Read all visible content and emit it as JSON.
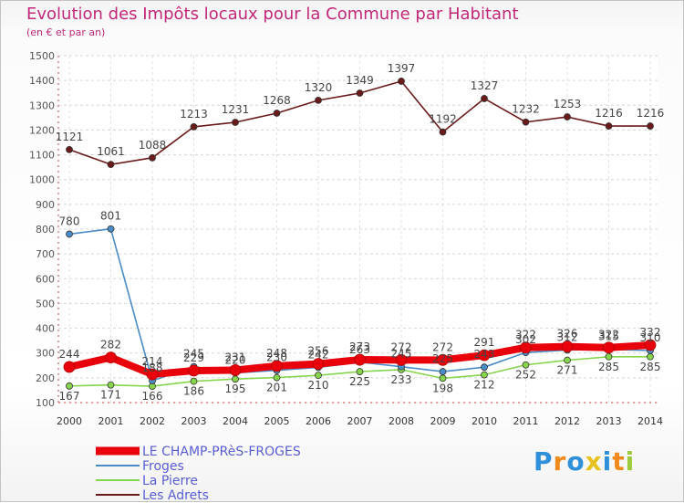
{
  "title": "Evolution des Impôts locaux pour la Commune par Habitant",
  "subtitle": "(en € et par an)",
  "chart_data": {
    "type": "line",
    "x": [
      "2000",
      "2001",
      "2002",
      "2003",
      "2004",
      "2005",
      "2006",
      "2007",
      "2008",
      "2009",
      "2010",
      "2011",
      "2012",
      "2013",
      "2014"
    ],
    "ylim": [
      100,
      1500
    ],
    "yticks": [
      100,
      200,
      300,
      400,
      500,
      600,
      700,
      800,
      900,
      1000,
      1100,
      1200,
      1300,
      1400,
      1500
    ],
    "series": [
      {
        "name": "LE CHAMP-PRèS-FROGES",
        "color": "#e8000b",
        "values": [
          244,
          282,
          214,
          229,
          231,
          248,
          256,
          273,
          272,
          272,
          291,
          322,
          326,
          322,
          332
        ]
      },
      {
        "name": "Froges",
        "color": "#4a8cc7",
        "values": [
          780,
          801,
          188,
          245,
          220,
          230,
          242,
          263,
          245,
          225,
          243,
          302,
          312,
          315,
          310
        ]
      },
      {
        "name": "La Pierre",
        "color": "#86d54c",
        "values": [
          167,
          171,
          166,
          186,
          195,
          201,
          210,
          225,
          233,
          198,
          212,
          252,
          271,
          285,
          285
        ]
      },
      {
        "name": "Les Adrets",
        "color": "#6b1a1a",
        "values": [
          1121,
          1061,
          1088,
          1213,
          1231,
          1268,
          1320,
          1349,
          1397,
          1192,
          1327,
          1232,
          1253,
          1216,
          1216
        ]
      }
    ]
  },
  "logo": {
    "letters": [
      "P",
      "r",
      "o",
      "x",
      "i",
      "t",
      "i"
    ],
    "colors": [
      "#2f8fd8",
      "#f08a1c",
      "#2f8fd8",
      "#e8c21f",
      "#2f8fd8",
      "#f08a1c",
      "#9ccc3c"
    ]
  }
}
